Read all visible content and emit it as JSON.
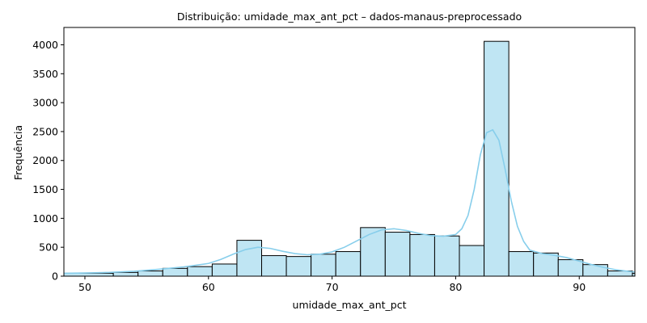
{
  "chart_data": {
    "type": "bar",
    "title": "Distribuição: umidade_max_ant_pct – dados-manaus-preprocessado",
    "xlabel": "umidade_max_ant_pct",
    "ylabel": "Frequência",
    "xlim": [
      48.3,
      94.5
    ],
    "ylim": [
      0,
      4300
    ],
    "xticks": [
      50,
      60,
      70,
      80,
      90
    ],
    "yticks": [
      0,
      500,
      1000,
      1500,
      2000,
      2500,
      3000,
      3500,
      4000
    ],
    "grid": false,
    "bar_color": "#bfe5f3",
    "edge_color": "#000000",
    "kde_color": "#87ceeb",
    "bins": [
      {
        "x0": 48.3,
        "x1": 52.3,
        "value": 50
      },
      {
        "x0": 52.3,
        "x1": 54.3,
        "value": 65
      },
      {
        "x0": 54.3,
        "x1": 56.3,
        "value": 90
      },
      {
        "x0": 56.3,
        "x1": 58.3,
        "value": 135
      },
      {
        "x0": 58.3,
        "x1": 60.3,
        "value": 165
      },
      {
        "x0": 60.3,
        "x1": 62.3,
        "value": 210
      },
      {
        "x0": 62.3,
        "x1": 64.3,
        "value": 620
      },
      {
        "x0": 64.3,
        "x1": 66.3,
        "value": 355
      },
      {
        "x0": 66.3,
        "x1": 68.3,
        "value": 340
      },
      {
        "x0": 68.3,
        "x1": 70.3,
        "value": 380
      },
      {
        "x0": 70.3,
        "x1": 72.3,
        "value": 425
      },
      {
        "x0": 72.3,
        "x1": 74.3,
        "value": 840
      },
      {
        "x0": 74.3,
        "x1": 76.3,
        "value": 760
      },
      {
        "x0": 76.3,
        "x1": 78.3,
        "value": 720
      },
      {
        "x0": 78.3,
        "x1": 80.3,
        "value": 695
      },
      {
        "x0": 80.3,
        "x1": 82.3,
        "value": 530
      },
      {
        "x0": 82.3,
        "x1": 84.3,
        "value": 4060
      },
      {
        "x0": 84.3,
        "x1": 86.3,
        "value": 425
      },
      {
        "x0": 86.3,
        "x1": 88.3,
        "value": 400
      },
      {
        "x0": 88.3,
        "x1": 90.3,
        "value": 285
      },
      {
        "x0": 90.3,
        "x1": 92.3,
        "value": 200
      },
      {
        "x0": 92.3,
        "x1": 94.3,
        "value": 90
      },
      {
        "x0": 94.3,
        "x1": 94.5,
        "value": 50
      }
    ],
    "kde": {
      "x": [
        48.3,
        50,
        52,
        54,
        56,
        58,
        60,
        61,
        62,
        63,
        64,
        65,
        66,
        67,
        68,
        69,
        70,
        71,
        72,
        73,
        74,
        75,
        76,
        77,
        78,
        79,
        80,
        80.5,
        81,
        81.5,
        82,
        82.5,
        83,
        83.5,
        84,
        84.5,
        85,
        85.5,
        86,
        87,
        88,
        89,
        90,
        91,
        92,
        93,
        94.5
      ],
      "y": [
        50,
        55,
        65,
        85,
        120,
        160,
        220,
        290,
        380,
        460,
        500,
        480,
        430,
        390,
        370,
        380,
        420,
        500,
        610,
        720,
        800,
        820,
        790,
        740,
        700,
        690,
        720,
        820,
        1050,
        1500,
        2100,
        2480,
        2530,
        2350,
        1850,
        1300,
        860,
        600,
        450,
        390,
        360,
        320,
        260,
        200,
        150,
        110,
        70
      ]
    }
  }
}
